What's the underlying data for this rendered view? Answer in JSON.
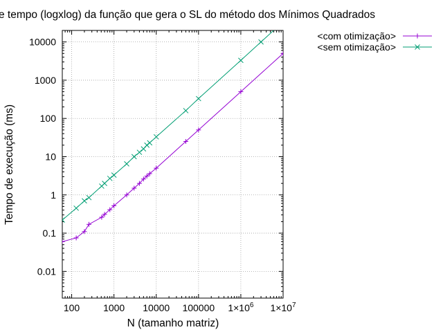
{
  "chart_data": {
    "type": "line",
    "title": "e tempo (logxlog) da função que gera o SL do método dos Mínimos Quadrados",
    "xlabel": "N (tamanho matriz)",
    "ylabel": "Tempo de execução (ms)",
    "x_scale": "log",
    "y_scale": "log",
    "xlim": [
      60,
      10000000
    ],
    "ylim": [
      0.002,
      20000
    ],
    "grid": true,
    "legend_position": "top-right",
    "x_ticks": [
      {
        "value": 100,
        "label": "100"
      },
      {
        "value": 1000,
        "label": "1000"
      },
      {
        "value": 10000,
        "label": "10000"
      },
      {
        "value": 100000,
        "label": "100000"
      },
      {
        "value": 1000000,
        "base": "1×10",
        "exp": "6"
      },
      {
        "value": 10000000,
        "base": "1×10",
        "exp": "7"
      }
    ],
    "y_ticks": [
      {
        "value": 0.01,
        "label": "0.01"
      },
      {
        "value": 0.1,
        "label": "0.1"
      },
      {
        "value": 1,
        "label": "1"
      },
      {
        "value": 10,
        "label": "10"
      },
      {
        "value": 100,
        "label": "100"
      },
      {
        "value": 1000,
        "label": "1000"
      },
      {
        "value": 10000,
        "label": "10000"
      }
    ],
    "series": [
      {
        "name": "<com otimização>",
        "color": "#9400d3",
        "marker": "plus",
        "x": [
          60,
          128,
          200,
          256,
          512,
          600,
          800,
          1000,
          2000,
          3000,
          4000,
          5000,
          6000,
          7000,
          10000,
          50000,
          100000,
          1000000,
          10000000
        ],
        "y": [
          0.06,
          0.075,
          0.11,
          0.17,
          0.26,
          0.31,
          0.41,
          0.52,
          1.0,
          1.5,
          2.0,
          2.6,
          3.1,
          3.6,
          5.0,
          25,
          50,
          500,
          5000
        ]
      },
      {
        "name": "<sem otimização>",
        "color": "#009e73",
        "marker": "cross",
        "x": [
          60,
          128,
          200,
          256,
          512,
          600,
          800,
          1000,
          2000,
          3000,
          4000,
          5000,
          6000,
          7000,
          10000,
          50000,
          100000,
          1000000,
          3000000
        ],
        "y": [
          0.22,
          0.45,
          0.7,
          0.85,
          1.7,
          2.0,
          2.7,
          3.3,
          6.5,
          10,
          13,
          16,
          20,
          23,
          33,
          160,
          330,
          3300,
          10000
        ]
      }
    ]
  }
}
